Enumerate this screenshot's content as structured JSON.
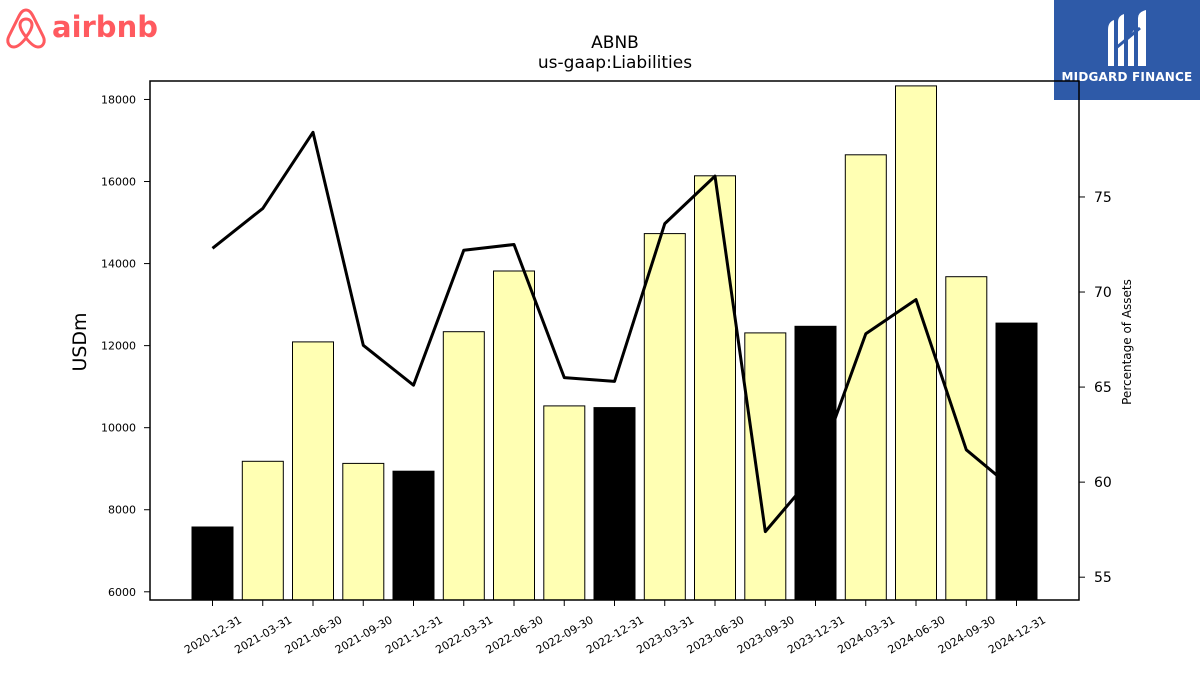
{
  "brand_left": {
    "name": "airbnb",
    "icon": "airbnb-belo-icon",
    "color": "#ff5a5f"
  },
  "brand_right": {
    "name": "MIDGARD FINANCE",
    "icon": "midgard-m-icon",
    "background": "#2e5aa8"
  },
  "chart_data": {
    "type": "bar",
    "title": "ABNB",
    "subtitle": "us-gaap:Liabilities",
    "ylabel": "USDm",
    "y2label": "Percentage of Assets",
    "categories": [
      "2020-12-31",
      "2021-03-31",
      "2021-06-30",
      "2021-09-30",
      "2021-12-31",
      "2022-03-31",
      "2022-06-30",
      "2022-09-30",
      "2022-12-31",
      "2023-03-31",
      "2023-06-30",
      "2023-09-30",
      "2023-12-31",
      "2024-03-31",
      "2024-06-30",
      "2024-09-30",
      "2024-12-31"
    ],
    "values": [
      7580,
      9180,
      12090,
      9130,
      8940,
      12340,
      13820,
      10530,
      10490,
      14730,
      16140,
      12310,
      12470,
      16650,
      18330,
      13680,
      12550
    ],
    "bar_colors": [
      "#000000",
      "#ffffb3",
      "#ffffb3",
      "#ffffb3",
      "#000000",
      "#ffffb3",
      "#ffffb3",
      "#ffffb3",
      "#000000",
      "#ffffb3",
      "#ffffb3",
      "#ffffb3",
      "#000000",
      "#ffffb3",
      "#ffffb3",
      "#ffffb3",
      "#000000"
    ],
    "line_series": {
      "axis": "right",
      "values": [
        72.3,
        74.4,
        78.4,
        67.2,
        65.1,
        72.2,
        72.5,
        65.5,
        65.3,
        73.6,
        76.1,
        57.4,
        60.5,
        67.8,
        69.6,
        61.7,
        59.5
      ],
      "color": "#000000"
    },
    "ylim": [
      5800,
      18450
    ],
    "y2lim": [
      53.8,
      81.1
    ],
    "yticks": [
      6000,
      8000,
      10000,
      12000,
      14000,
      16000,
      18000
    ],
    "y2ticks": [
      55,
      60,
      65,
      70,
      75
    ],
    "grid": false
  }
}
